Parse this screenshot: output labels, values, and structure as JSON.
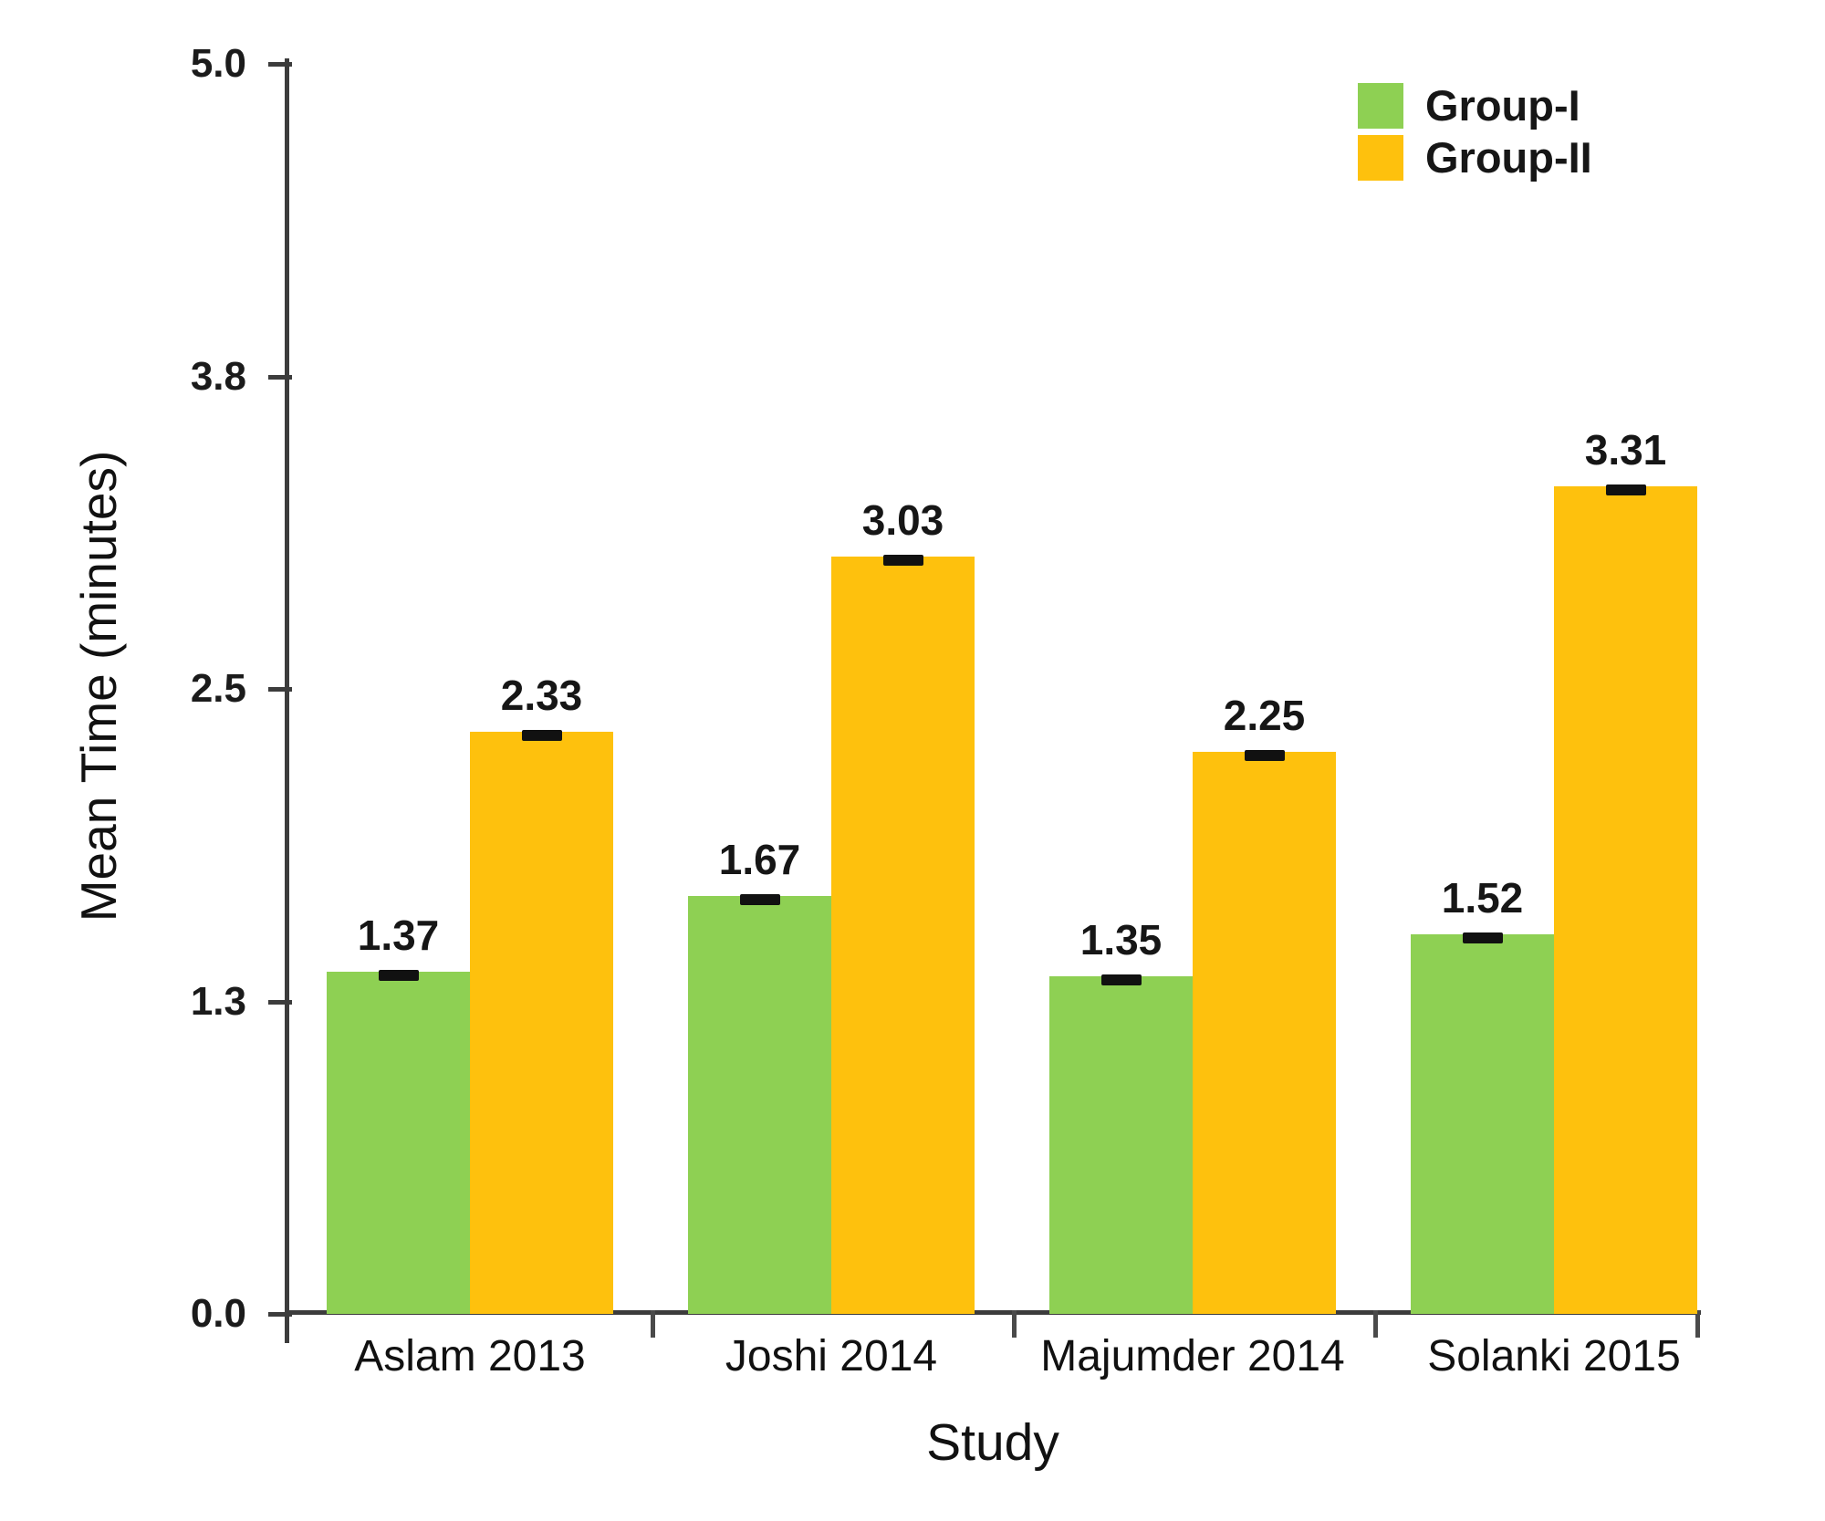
{
  "chart_data": {
    "type": "bar",
    "title": "",
    "categories": [
      "Aslam 2013",
      "Joshi 2014",
      "Majumder 2014",
      "Solanki 2015"
    ],
    "series": [
      {
        "name": "Group-I",
        "color": "#8ed053",
        "values": [
          1.37,
          1.67,
          1.35,
          1.52
        ]
      },
      {
        "name": "Group-II",
        "color": "#fec10d",
        "values": [
          2.33,
          3.03,
          2.25,
          3.31
        ]
      }
    ],
    "value_label_decimals": 2,
    "error_bars": true,
    "xlabel": "Study",
    "ylabel": "Mean Time (minutes)",
    "ylim": [
      0,
      5
    ],
    "yticks": [
      0,
      1.25,
      2.5,
      3.75,
      5
    ],
    "ytick_labels": [
      "0.0",
      "1.3",
      "2.5",
      "3.8",
      "5.0"
    ],
    "grid": false,
    "legend_position": "top-right"
  },
  "legend": {
    "items": [
      {
        "label": "Group-I",
        "color": "#8ed053"
      },
      {
        "label": "Group-II",
        "color": "#fec10d"
      }
    ]
  },
  "colors": {
    "axis": "#3c3c3c",
    "text": "#1b1b1b",
    "error_bar": "#111111",
    "background": "#ffffff"
  }
}
